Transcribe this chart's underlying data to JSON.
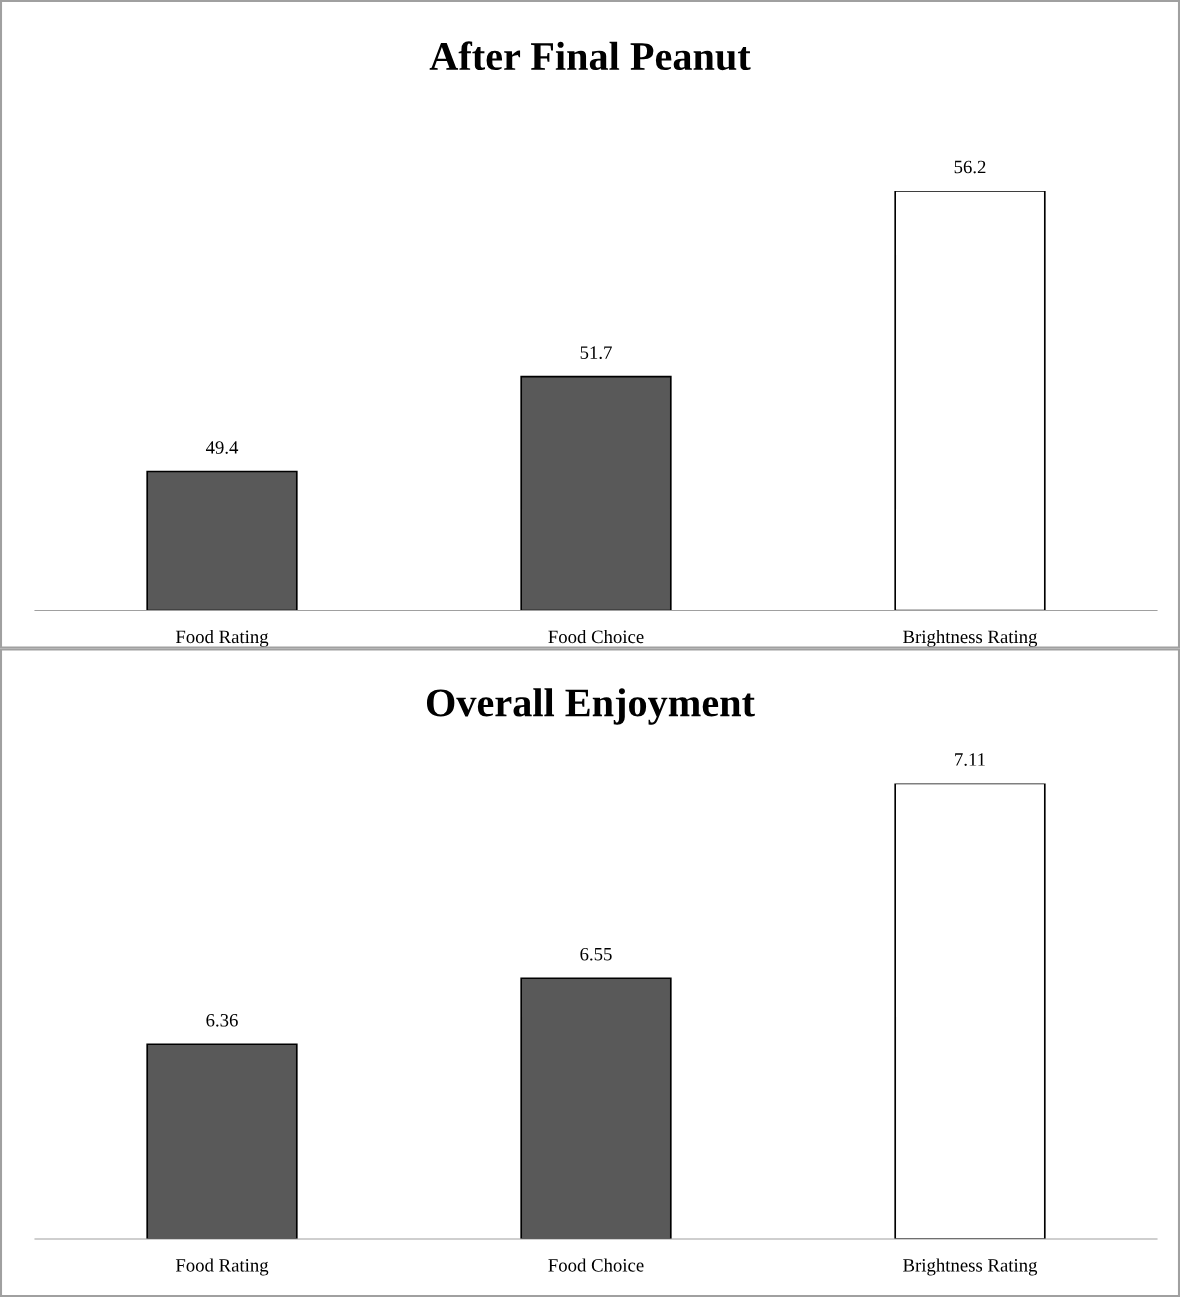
{
  "chart_data": [
    {
      "type": "bar",
      "title": "After Final Peanut",
      "categories": [
        "Food Rating",
        "Food Choice",
        "Brightness Rating"
      ],
      "values": [
        49.4,
        51.7,
        56.2
      ],
      "colors": [
        "#595959",
        "#595959",
        "#ffffff"
      ],
      "ylim": [
        46.03,
        56.2
      ],
      "data_labels": true,
      "grid": false
    },
    {
      "type": "bar",
      "title": "Overall Enjoyment",
      "categories": [
        "Food Rating",
        "Food Choice",
        "Brightness Rating"
      ],
      "values": [
        6.36,
        6.55,
        7.11
      ],
      "colors": [
        "#595959",
        "#595959",
        "#ffffff"
      ],
      "ylim": [
        5.8,
        7.11
      ],
      "data_labels": true,
      "grid": false
    }
  ]
}
